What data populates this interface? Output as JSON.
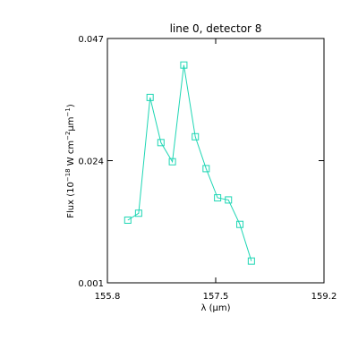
{
  "chart_data": {
    "type": "line",
    "title": "line 0, detector 8",
    "xlabel": "λ (μm)",
    "ylabel": {
      "prefix": "Flux (10",
      "exp1": "−18",
      "middle": " W cm",
      "exp2": "−2",
      "unit": "μm",
      "exp3": "−1",
      "suffix": ")"
    },
    "xlim": [
      155.8,
      159.2
    ],
    "ylim": [
      0.001,
      0.047
    ],
    "x_ticks": [
      {
        "value": 155.8,
        "label": "155.8"
      },
      {
        "value": 157.5,
        "label": "157.5"
      },
      {
        "value": 159.2,
        "label": "159.2"
      }
    ],
    "y_ticks": [
      {
        "value": 0.001,
        "label": "0.001"
      },
      {
        "value": 0.024,
        "label": "0.024"
      },
      {
        "value": 0.047,
        "label": "0.047"
      }
    ],
    "grid": false,
    "series": [
      {
        "color": "#1ED6B4",
        "marker": "open-square",
        "x": [
          156.12,
          156.29,
          156.47,
          156.64,
          156.82,
          157.0,
          157.18,
          157.35,
          157.53,
          157.7,
          157.88,
          158.06
        ],
        "y": [
          0.0128,
          0.0141,
          0.0359,
          0.0274,
          0.0238,
          0.042,
          0.0285,
          0.0225,
          0.017,
          0.0166,
          0.012,
          0.0051
        ]
      }
    ]
  }
}
